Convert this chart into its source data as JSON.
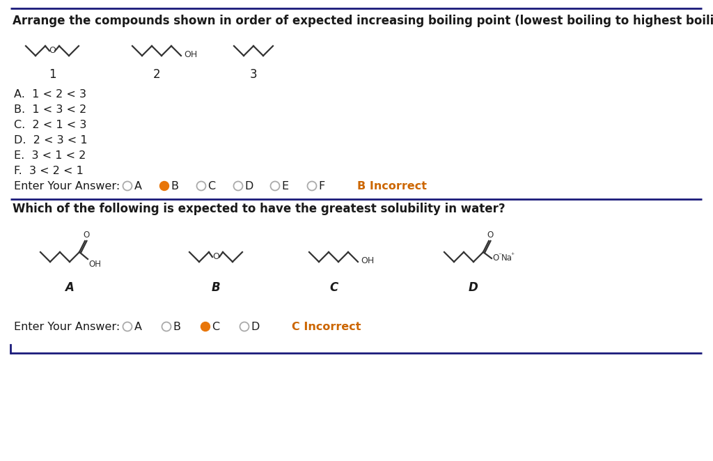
{
  "bg_color": "#ffffff",
  "line_color": "#1a1a7a",
  "title1": "Arrange the compounds shown in order of expected increasing boiling point (lowest boiling to highest boiling).",
  "title2": "Which of the following is expected to have the greatest solubility in water?",
  "options_q1": [
    "A.  1 < 2 < 3",
    "B.  1 < 3 < 2",
    "C.  2 < 1 < 3",
    "D.  2 < 3 < 1",
    "E.  3 < 1 < 2",
    "F.  3 < 2 < 1"
  ],
  "answer_q1_label": "Enter Your Answer:",
  "answer_q1_choices": [
    "A",
    "B",
    "C",
    "D",
    "E",
    "F"
  ],
  "answer_q1_selected": 1,
  "answer_q1_incorrect": "B Incorrect",
  "answer_q2_label": "Enter Your Answer:",
  "answer_q2_choices": [
    "A",
    "B",
    "C",
    "D"
  ],
  "answer_q2_selected": 2,
  "answer_q2_incorrect": "C Incorrect",
  "text_color": "#1a1a1a",
  "incorrect_color": "#cc6600",
  "radio_empty_color": "#aaaaaa",
  "radio_selected_color": "#e8760a",
  "font_size_title": 12,
  "font_size_options": 11.5,
  "font_size_answer": 11.5,
  "struct_line_color": "#333333",
  "struct_lw": 1.6
}
